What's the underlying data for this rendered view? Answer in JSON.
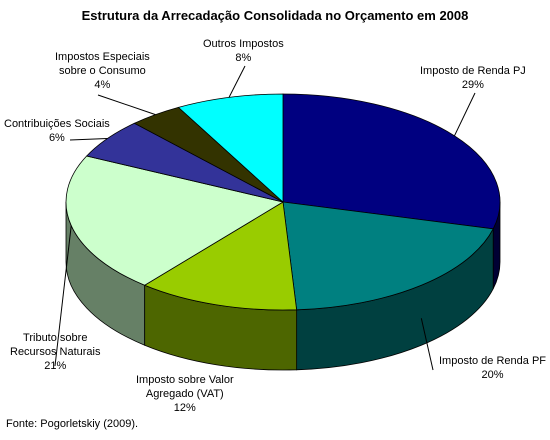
{
  "chart_data": {
    "type": "pie",
    "title": "Estrutura da Arrecadação Consolidada no Orçamento em 2008",
    "slices": [
      {
        "label_lines": [
          "Imposto de Renda PJ"
        ],
        "value": 29,
        "value_label": "29%",
        "color": "#000080",
        "side_color": "#000033"
      },
      {
        "label_lines": [
          "Imposto de Renda PF"
        ],
        "value": 20,
        "value_label": "20%",
        "color": "#008080",
        "side_color": "#004040"
      },
      {
        "label_lines": [
          "Imposto sobre Valor",
          "Agregado (VAT)"
        ],
        "value": 12,
        "value_label": "12%",
        "color": "#99CC00",
        "side_color": "#4D6600"
      },
      {
        "label_lines": [
          "Tributo sobre",
          "Recursos Naturais"
        ],
        "value": 21,
        "value_label": "21%",
        "color": "#CCFFCC",
        "side_color": "#668066"
      },
      {
        "label_lines": [
          "Contribuições Sociais"
        ],
        "value": 6,
        "value_label": "6%",
        "color": "#333399",
        "side_color": "#1A1A4D"
      },
      {
        "label_lines": [
          "Impostos Especiais",
          "sobre o Consumo"
        ],
        "value": 4,
        "value_label": "4%",
        "color": "#333300",
        "side_color": "#1A1A00"
      },
      {
        "label_lines": [
          "Outros Impostos"
        ],
        "value": 8,
        "value_label": "8%",
        "color": "#00FFFF",
        "side_color": "#008080"
      }
    ],
    "start_angle_deg": -90,
    "direction": "clockwise"
  },
  "footer": {
    "source": "Fonte: Pogorletskiy (2009)."
  }
}
